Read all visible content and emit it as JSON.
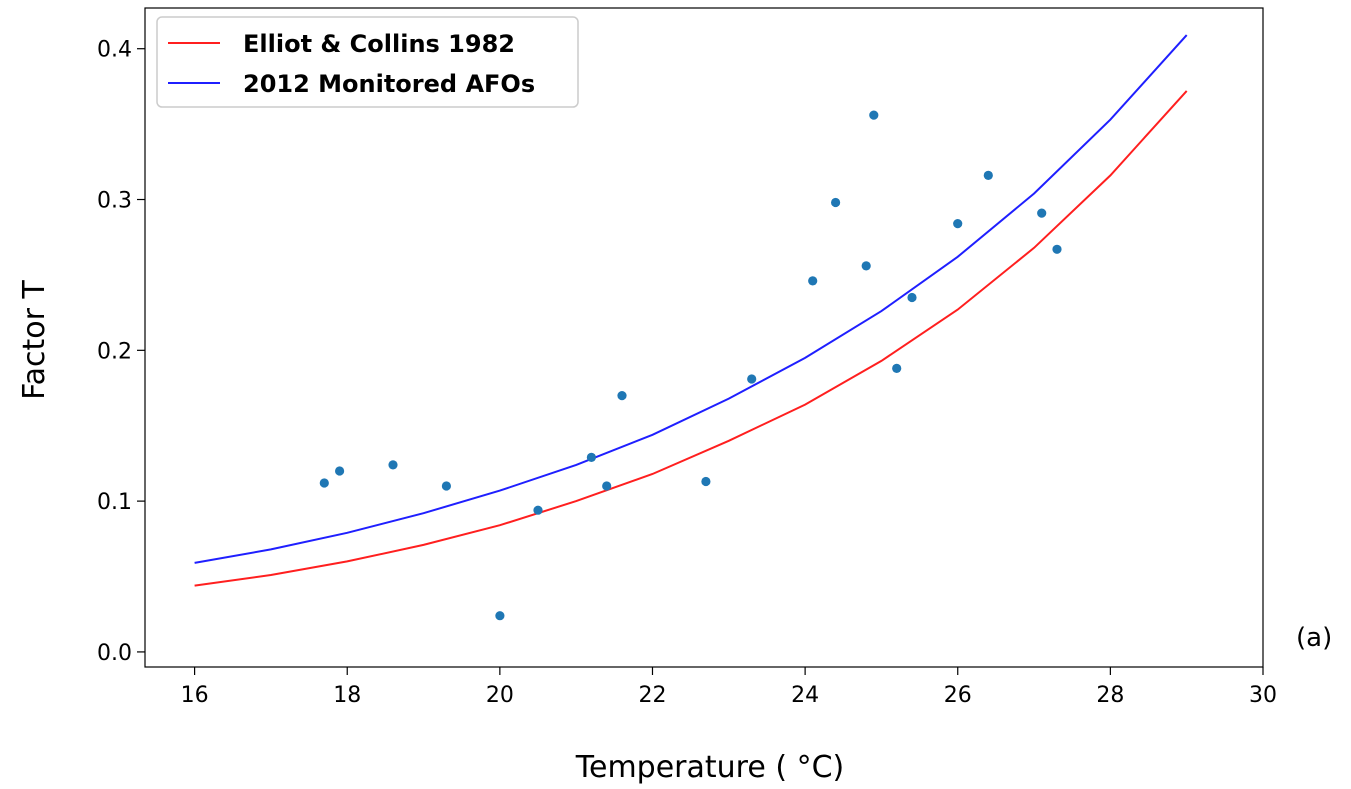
{
  "chart_data": {
    "type": "scatter",
    "title": "",
    "xlabel": "Temperature ( °C)",
    "ylabel": "Factor T",
    "panel_label": "(a)",
    "xlim": [
      15.35,
      30
    ],
    "ylim": [
      -0.01,
      0.427
    ],
    "xticks": [
      16,
      18,
      20,
      22,
      24,
      26,
      28,
      30
    ],
    "xtick_labels": [
      "16",
      "18",
      "20",
      "22",
      "24",
      "26",
      "28",
      "30"
    ],
    "yticks": [
      0.0,
      0.1,
      0.2,
      0.3,
      0.4
    ],
    "ytick_labels": [
      "0.0",
      "0.1",
      "0.2",
      "0.3",
      "0.4"
    ],
    "grid": false,
    "legend_position": "top-left",
    "series": [
      {
        "name": "Elliot & Collins 1982",
        "kind": "line",
        "color": "#ff1f1f",
        "x": [
          16,
          17,
          18,
          19,
          20,
          21,
          22,
          23,
          24,
          25,
          26,
          27,
          28,
          29
        ],
        "y": [
          0.044,
          0.051,
          0.06,
          0.071,
          0.084,
          0.1,
          0.118,
          0.14,
          0.164,
          0.193,
          0.227,
          0.268,
          0.316,
          0.372
        ]
      },
      {
        "name": "2012 Monitored AFOs",
        "kind": "line",
        "color": "#1f1fff",
        "x": [
          16,
          17,
          18,
          19,
          20,
          21,
          22,
          23,
          24,
          25,
          26,
          27,
          28,
          29
        ],
        "y": [
          0.059,
          0.068,
          0.079,
          0.092,
          0.107,
          0.124,
          0.144,
          0.168,
          0.195,
          0.226,
          0.262,
          0.304,
          0.353,
          0.409
        ]
      },
      {
        "kind": "scatter",
        "color": "#1f77b4",
        "x": [
          17.7,
          17.9,
          18.6,
          19.3,
          20.0,
          20.5,
          21.2,
          21.4,
          21.6,
          22.7,
          23.3,
          24.1,
          24.4,
          24.8,
          24.9,
          25.2,
          25.4,
          26.0,
          26.4,
          27.1,
          27.3
        ],
        "y": [
          0.112,
          0.12,
          0.124,
          0.11,
          0.024,
          0.094,
          0.129,
          0.11,
          0.17,
          0.113,
          0.181,
          0.246,
          0.298,
          0.256,
          0.356,
          0.188,
          0.235,
          0.284,
          0.316,
          0.291,
          0.267
        ]
      }
    ]
  }
}
